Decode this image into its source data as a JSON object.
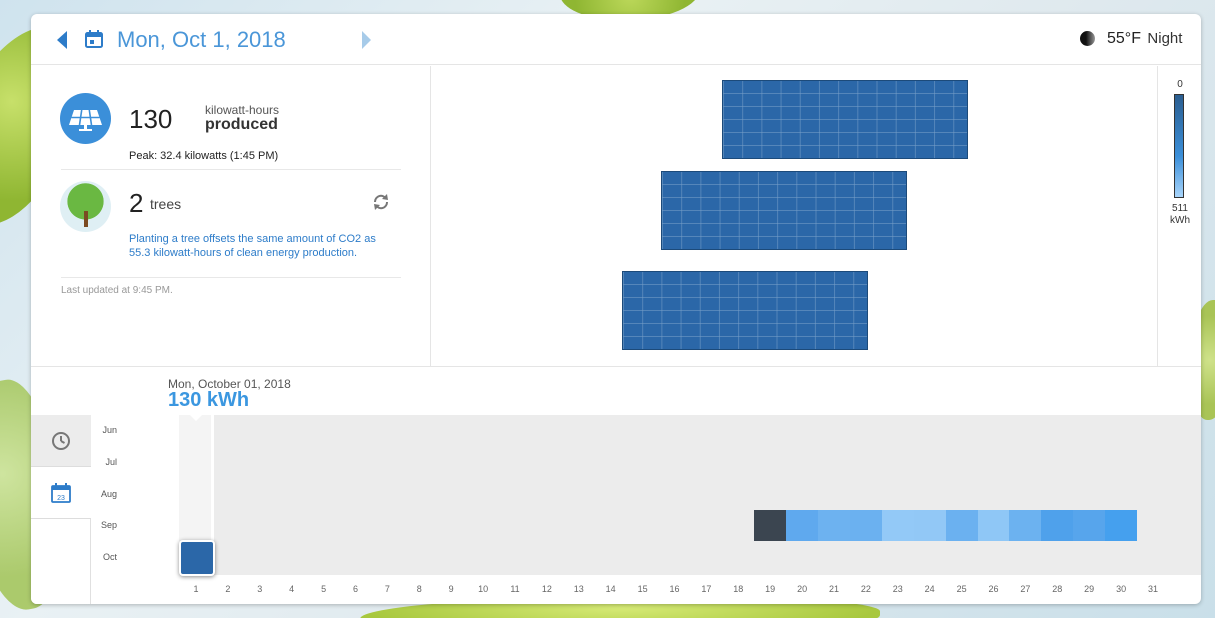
{
  "header": {
    "date": "Mon, Oct 1, 2018",
    "temperature": "55°F",
    "condition": "Night"
  },
  "summary": {
    "produced_value": "130",
    "produced_unit": "kilowatt-hours",
    "produced_label": "produced",
    "peak": "Peak: 32.4 kilowatts (1:45 PM)",
    "trees_value": "2",
    "trees_label": "trees",
    "tree_info": "Planting a tree offsets the same amount of CO2 as 55.3 kilowatt-hours of clean energy production.",
    "last_updated": "Last updated at 9:45 PM."
  },
  "legend": {
    "top": "0",
    "bottom_value": "511",
    "bottom_unit": "kWh",
    "top_color": "#2b5e90",
    "bottom_color": "#a8d4fa"
  },
  "selection": {
    "date": "Mon, October 01, 2018",
    "kwh": "130 kWh"
  },
  "months": [
    "Jun",
    "Jul",
    "Aug",
    "Sep",
    "Oct"
  ],
  "days": [
    "1",
    "2",
    "3",
    "4",
    "5",
    "6",
    "7",
    "8",
    "9",
    "10",
    "11",
    "12",
    "13",
    "14",
    "15",
    "16",
    "17",
    "18",
    "19",
    "20",
    "21",
    "22",
    "23",
    "24",
    "25",
    "26",
    "27",
    "28",
    "29",
    "30",
    "31"
  ],
  "sep_cells": [
    {
      "day": 19,
      "color": "#3b4550"
    },
    {
      "day": 20,
      "color": "#5fa9ee"
    },
    {
      "day": 21,
      "color": "#6db2f0"
    },
    {
      "day": 22,
      "color": "#6bb1f0"
    },
    {
      "day": 23,
      "color": "#93c9f7"
    },
    {
      "day": 24,
      "color": "#92c8f6"
    },
    {
      "day": 25,
      "color": "#6bb1f0"
    },
    {
      "day": 26,
      "color": "#8fc7f6"
    },
    {
      "day": 27,
      "color": "#6cb2f0"
    },
    {
      "day": 28,
      "color": "#4fa1eb"
    },
    {
      "day": 29,
      "color": "#57a5ec"
    },
    {
      "day": 30,
      "color": "#45a0ee"
    }
  ],
  "oct_selected_color": "#2b67a8"
}
